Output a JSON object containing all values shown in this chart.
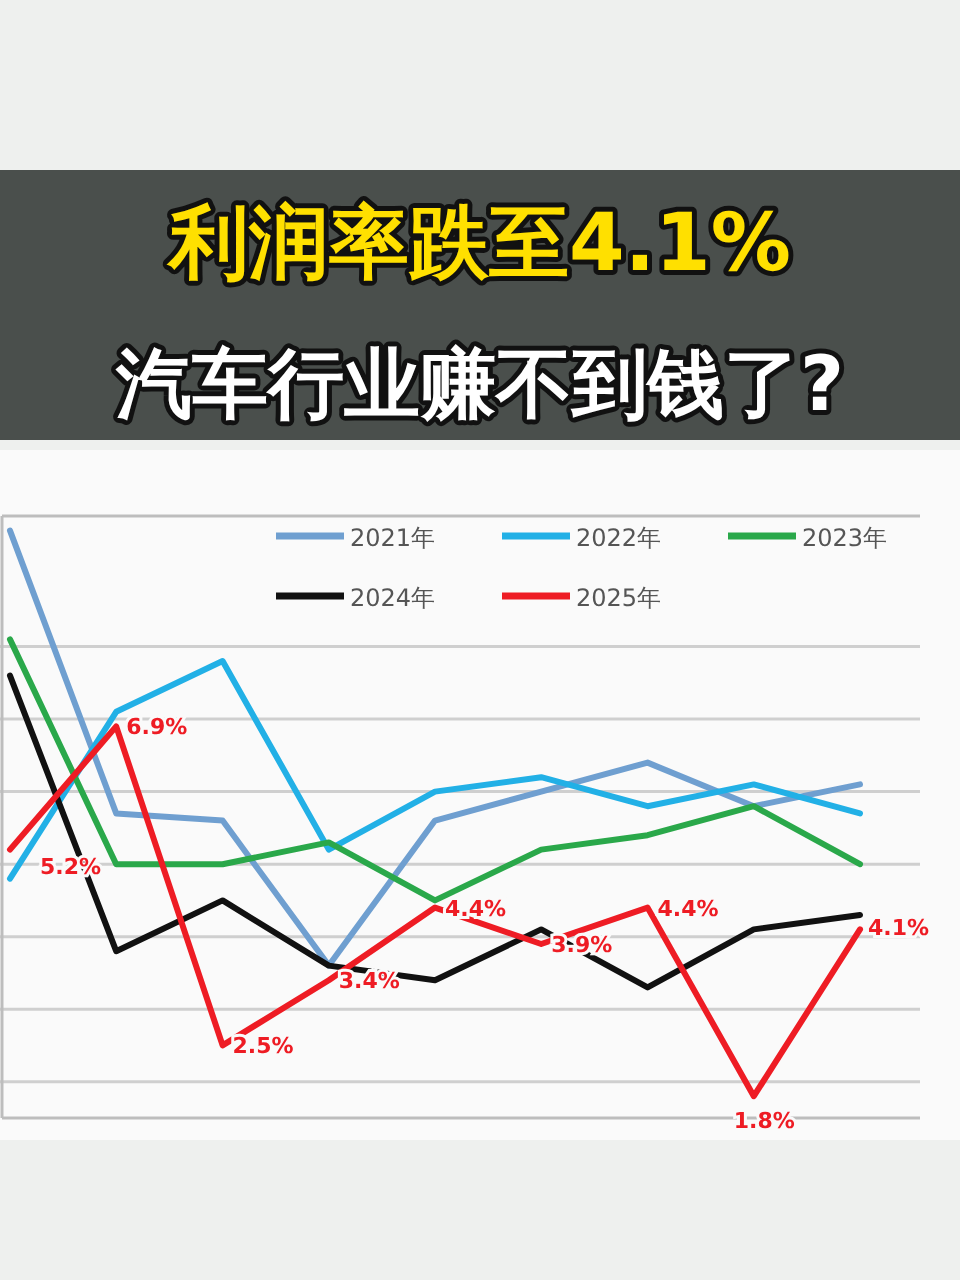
{
  "chart_data": {
    "type": "line",
    "title": "利润率跌至4.1%",
    "subtitle": "汽车行业赚不到钱了?",
    "categories": [
      null,
      null,
      null,
      null,
      null,
      null,
      null,
      null,
      null
    ],
    "ylim": [
      1.5,
      9.8
    ],
    "yticks": [
      {
        "value": 2,
        "label": null
      },
      {
        "value": 3,
        "label": null
      },
      {
        "value": 4,
        "label": null
      },
      {
        "value": 5,
        "label": null
      },
      {
        "value": 6,
        "label": null
      },
      {
        "value": 7,
        "label": null
      },
      {
        "value": 8,
        "label": null
      }
    ],
    "grid": "y",
    "legend": "top",
    "line_style": "solid",
    "series": [
      {
        "name": "2021年",
        "color": "#6f9fd0",
        "values": [
          9.6,
          5.7,
          5.6,
          3.6,
          5.6,
          6.0,
          6.4,
          5.8,
          6.1
        ]
      },
      {
        "name": "2022年",
        "color": "#22b0e6",
        "values": [
          4.8,
          7.1,
          7.8,
          5.2,
          6.0,
          6.2,
          5.8,
          6.1,
          5.7
        ]
      },
      {
        "name": "2023年",
        "color": "#2aa84a",
        "values": [
          8.1,
          5.0,
          5.0,
          5.3,
          4.5,
          5.2,
          5.4,
          5.8,
          5.0
        ]
      },
      {
        "name": "2024年",
        "color": "#111111",
        "values": [
          7.6,
          3.8,
          4.5,
          3.6,
          3.4,
          4.1,
          3.3,
          4.1,
          4.3
        ]
      },
      {
        "name": "2025年",
        "color": "#ee1c24",
        "values": [
          5.2,
          6.9,
          2.5,
          3.4,
          4.4,
          3.9,
          4.4,
          1.8,
          4.1
        ],
        "value_labels": [
          "5.2%",
          "6.9%",
          "2.5%",
          "3.4%",
          "4.4%",
          "3.9%",
          "4.4%",
          "1.8%",
          "4.1%"
        ]
      }
    ]
  }
}
